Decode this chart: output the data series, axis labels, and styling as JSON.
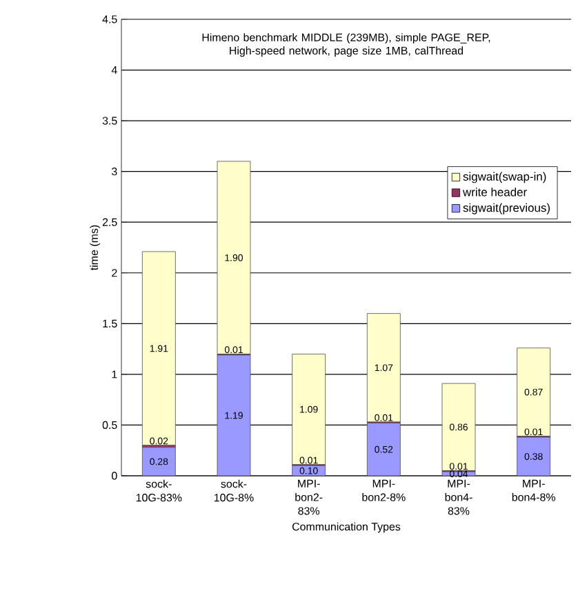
{
  "chart_data": {
    "type": "bar",
    "stacked": true,
    "title": "Himeno benchmark MIDDLE (239MB), simple PAGE_REP, High-speed network, page size 1MB, calThread",
    "xlabel": "Communication Types",
    "ylabel": "time (ms)",
    "categories": [
      "sock-10G-83%",
      "sock-10G-8%",
      "MPI-bon2-83%",
      "MPI-bon2-8%",
      "MPI-bon4-83%",
      "MPI-bon4-8%"
    ],
    "series": [
      {
        "name": "sigwait(previous)",
        "color": "#9999ff",
        "values": [
          0.28,
          1.19,
          0.1,
          0.52,
          0.04,
          0.38
        ],
        "value_labels": [
          "0.28",
          "1.19",
          "0.10",
          "0.52",
          "0.04",
          "0.38"
        ]
      },
      {
        "name": "write header",
        "color": "#993366",
        "values": [
          0.02,
          0.01,
          0.01,
          0.01,
          0.01,
          0.01
        ],
        "value_labels": [
          "0.02",
          "0.01",
          "0.01",
          "0.01",
          "0.01",
          "0.01"
        ]
      },
      {
        "name": "sigwait(swap-in)",
        "color": "#ffffcc",
        "values": [
          1.91,
          1.9,
          1.09,
          1.07,
          0.86,
          0.87
        ],
        "value_labels": [
          "1.91",
          "1.90",
          "1.09",
          "1.07",
          "0.86",
          "0.87"
        ]
      }
    ],
    "ylim": [
      0,
      4.5
    ],
    "yticks": [
      0,
      0.5,
      1,
      1.5,
      2,
      2.5,
      3,
      3.5,
      4,
      4.5
    ],
    "grid": "y",
    "legend": "right"
  }
}
